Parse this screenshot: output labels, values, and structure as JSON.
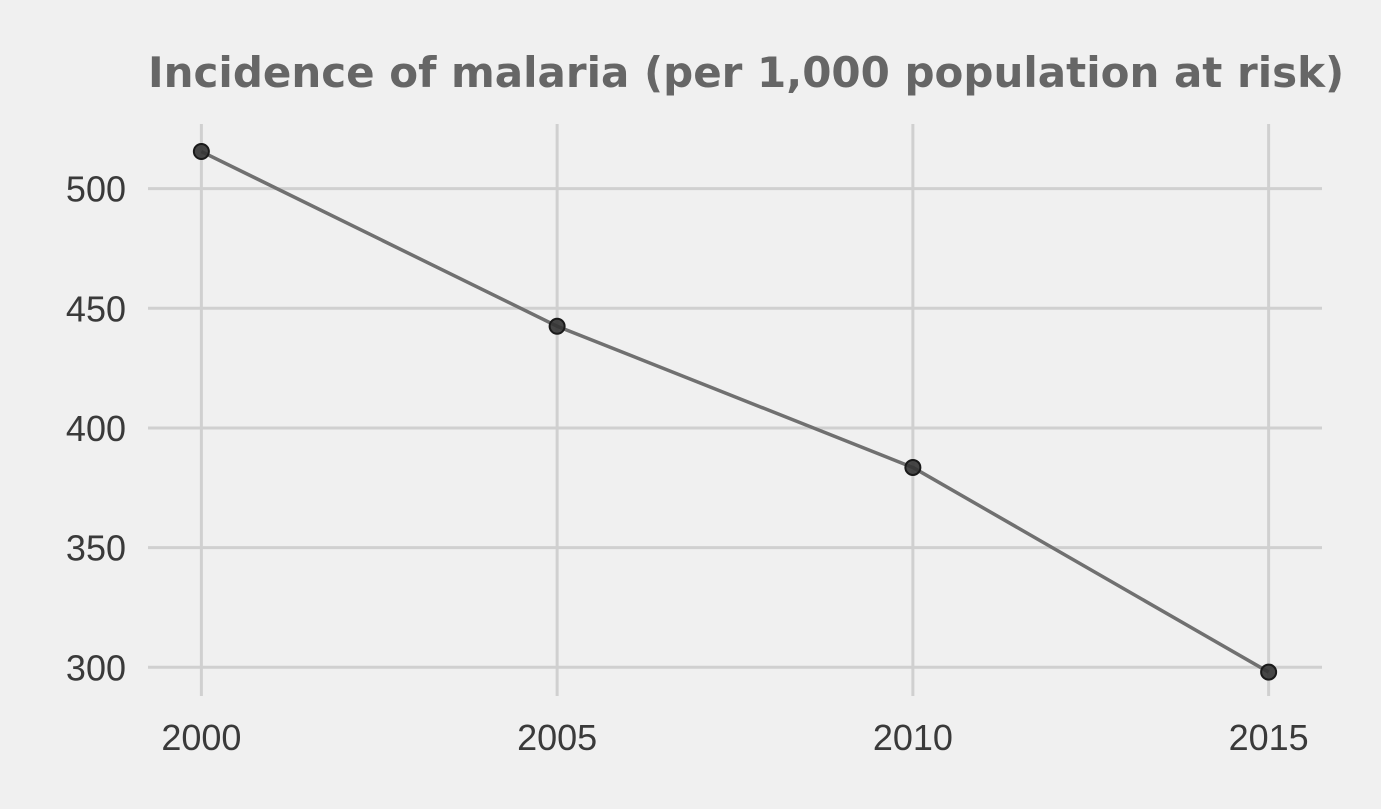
{
  "chart_data": {
    "type": "line",
    "title": "Incidence of malaria (per 1,000 population at risk)",
    "x": [
      2000,
      2005,
      2010,
      2015
    ],
    "series": [
      {
        "values": [
          515.5,
          442.5,
          383.5,
          298.0
        ]
      }
    ],
    "xticks": [
      "2000",
      "2005",
      "2010",
      "2015"
    ],
    "yticks": [
      300,
      350,
      400,
      450,
      500
    ],
    "xlim": [
      1999.25,
      2015.75
    ],
    "ylim": [
      288,
      527
    ],
    "grid": true,
    "colors": {
      "background": "#f0f0f0",
      "grid": "#d0d0d0",
      "line": "#707070",
      "marker_fill": "#333333",
      "marker_edge": "#1a1a1a",
      "title": "#666666",
      "tick_label": "#3a3a3a"
    }
  }
}
